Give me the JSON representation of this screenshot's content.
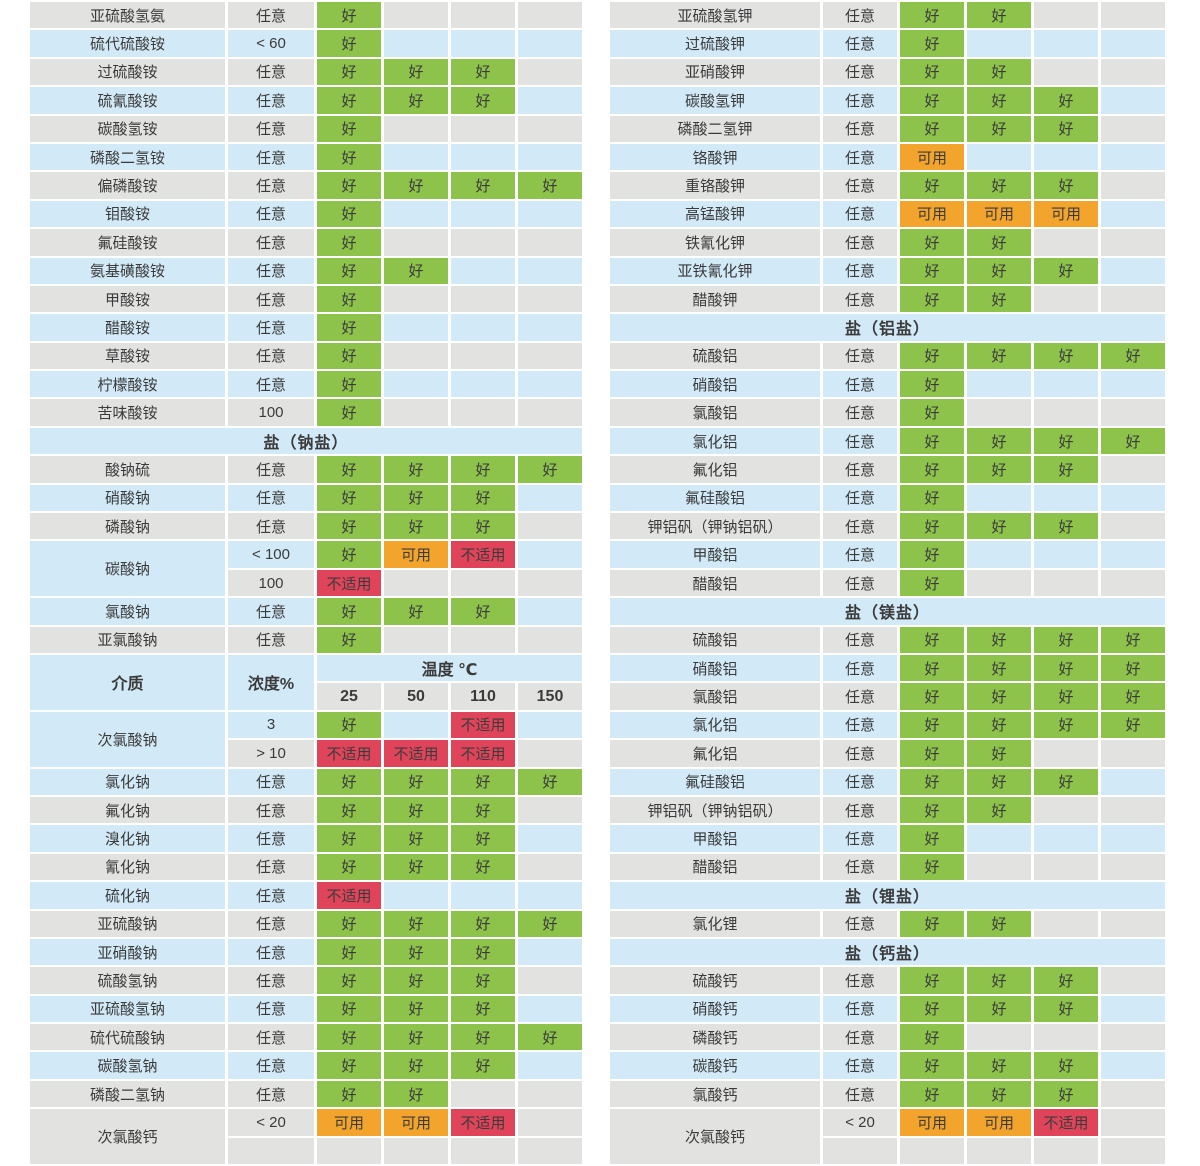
{
  "legend_labels": {
    "good": "好",
    "usable": "可用",
    "unsuitable": "不适用"
  },
  "colors": {
    "good": "#8dc24b",
    "usable": "#f3a42d",
    "unsuitable": "#e0445a",
    "row_gray": "#e2e2e1",
    "row_blue": "#d2e9f7",
    "text": "#3b3b3b"
  },
  "column_header": {
    "medium": "介质",
    "concentration": "浓度%",
    "temperature": "温度 ℃",
    "temps": [
      "25",
      "50",
      "110",
      "150"
    ]
  },
  "left_table": {
    "rows": [
      {
        "name": "亚硫酸氢氨",
        "conc": "任意",
        "stripe": "gray",
        "cells": [
          "good",
          "",
          "",
          ""
        ]
      },
      {
        "name": "硫代硫酸铵",
        "conc": "< 60",
        "stripe": "blue",
        "cells": [
          "good",
          "",
          "",
          ""
        ]
      },
      {
        "name": "过硫酸铵",
        "conc": "任意",
        "stripe": "gray",
        "cells": [
          "good",
          "good",
          "good",
          ""
        ]
      },
      {
        "name": "硫氰酸铵",
        "conc": "任意",
        "stripe": "blue",
        "cells": [
          "good",
          "good",
          "good",
          ""
        ]
      },
      {
        "name": "碳酸氢铵",
        "conc": "任意",
        "stripe": "gray",
        "cells": [
          "good",
          "",
          "",
          ""
        ]
      },
      {
        "name": "磷酸二氢铵",
        "conc": "任意",
        "stripe": "blue",
        "cells": [
          "good",
          "",
          "",
          ""
        ]
      },
      {
        "name": "偏磷酸铵",
        "conc": "任意",
        "stripe": "gray",
        "cells": [
          "good",
          "good",
          "good",
          "good"
        ]
      },
      {
        "name": "钼酸铵",
        "conc": "任意",
        "stripe": "blue",
        "cells": [
          "good",
          "",
          "",
          ""
        ]
      },
      {
        "name": "氟硅酸铵",
        "conc": "任意",
        "stripe": "gray",
        "cells": [
          "good",
          "",
          "",
          ""
        ]
      },
      {
        "name": "氨基磺酸铵",
        "conc": "任意",
        "stripe": "blue",
        "cells": [
          "good",
          "good",
          "",
          ""
        ]
      },
      {
        "name": "甲酸铵",
        "conc": "任意",
        "stripe": "gray",
        "cells": [
          "good",
          "",
          "",
          ""
        ]
      },
      {
        "name": "醋酸铵",
        "conc": "任意",
        "stripe": "blue",
        "cells": [
          "good",
          "",
          "",
          ""
        ]
      },
      {
        "name": "草酸铵",
        "conc": "任意",
        "stripe": "gray",
        "cells": [
          "good",
          "",
          "",
          ""
        ]
      },
      {
        "name": "柠檬酸铵",
        "conc": "任意",
        "stripe": "blue",
        "cells": [
          "good",
          "",
          "",
          ""
        ]
      },
      {
        "name": "苦味酸铵",
        "conc": "100",
        "stripe": "gray",
        "cells": [
          "good",
          "",
          "",
          ""
        ]
      },
      {
        "section": "盐（钠盐）"
      },
      {
        "name": "酸钠硫",
        "conc": "任意",
        "stripe": "gray",
        "cells": [
          "good",
          "good",
          "good",
          "good"
        ]
      },
      {
        "name": "硝酸钠",
        "conc": "任意",
        "stripe": "blue",
        "cells": [
          "good",
          "good",
          "good",
          ""
        ]
      },
      {
        "name": "磷酸钠",
        "conc": "任意",
        "stripe": "gray",
        "cells": [
          "good",
          "good",
          "good",
          ""
        ]
      },
      {
        "name": "碳酸钠",
        "span": 2,
        "conc": "< 100",
        "stripe": "blue",
        "cells": [
          "good",
          "usable",
          "unsuitable",
          ""
        ]
      },
      {
        "cont": true,
        "conc": "100",
        "stripe": "gray",
        "cells": [
          "unsuitable",
          "",
          "",
          ""
        ]
      },
      {
        "name": "氯酸钠",
        "conc": "任意",
        "stripe": "blue",
        "cells": [
          "good",
          "good",
          "good",
          ""
        ]
      },
      {
        "name": "亚氯酸钠",
        "conc": "任意",
        "stripe": "gray",
        "cells": [
          "good",
          "",
          "",
          ""
        ]
      },
      {
        "temp_header": true
      },
      {
        "name": "次氯酸钠",
        "span": 2,
        "conc": "3",
        "stripe": "blue",
        "cells": [
          "good",
          "",
          "unsuitable",
          ""
        ]
      },
      {
        "cont": true,
        "conc": "> 10",
        "stripe": "gray",
        "cells": [
          "unsuitable",
          "unsuitable",
          "unsuitable",
          ""
        ]
      },
      {
        "name": "氯化钠",
        "conc": "任意",
        "stripe": "blue",
        "cells": [
          "good",
          "good",
          "good",
          "good"
        ]
      },
      {
        "name": "氟化钠",
        "conc": "任意",
        "stripe": "gray",
        "cells": [
          "good",
          "good",
          "good",
          ""
        ]
      },
      {
        "name": "溴化钠",
        "conc": "任意",
        "stripe": "blue",
        "cells": [
          "good",
          "good",
          "good",
          ""
        ]
      },
      {
        "name": "氰化钠",
        "conc": "任意",
        "stripe": "gray",
        "cells": [
          "good",
          "good",
          "good",
          ""
        ]
      },
      {
        "name": "硫化钠",
        "conc": "任意",
        "stripe": "blue",
        "cells": [
          "unsuitable",
          "",
          "",
          ""
        ]
      },
      {
        "name": "亚硫酸钠",
        "conc": "任意",
        "stripe": "gray",
        "cells": [
          "good",
          "good",
          "good",
          "good"
        ]
      },
      {
        "name": "亚硝酸钠",
        "conc": "任意",
        "stripe": "blue",
        "cells": [
          "good",
          "good",
          "good",
          ""
        ]
      },
      {
        "name": "硫酸氢钠",
        "conc": "任意",
        "stripe": "gray",
        "cells": [
          "good",
          "good",
          "good",
          ""
        ]
      },
      {
        "name": "亚硫酸氢钠",
        "conc": "任意",
        "stripe": "blue",
        "cells": [
          "good",
          "good",
          "good",
          ""
        ]
      },
      {
        "name": "硫代硫酸钠",
        "conc": "任意",
        "stripe": "gray",
        "cells": [
          "good",
          "good",
          "good",
          "good"
        ]
      },
      {
        "name": "碳酸氢钠",
        "conc": "任意",
        "stripe": "blue",
        "cells": [
          "good",
          "good",
          "good",
          ""
        ]
      },
      {
        "name": "磷酸二氢钠",
        "conc": "任意",
        "stripe": "gray",
        "cells": [
          "good",
          "good",
          "",
          ""
        ]
      },
      {
        "name": "次氯酸钙",
        "span": 2,
        "cut": true,
        "conc": "< 20",
        "stripe": "gray",
        "cells": [
          "usable",
          "usable",
          "unsuitable",
          ""
        ]
      }
    ]
  },
  "right_table": {
    "rows": [
      {
        "name": "亚硫酸氢钾",
        "conc": "任意",
        "stripe": "gray",
        "cells": [
          "good",
          "good",
          "",
          ""
        ]
      },
      {
        "name": "过硫酸钾",
        "conc": "任意",
        "stripe": "blue",
        "cells": [
          "good",
          "",
          "",
          ""
        ]
      },
      {
        "name": "亚硝酸钾",
        "conc": "任意",
        "stripe": "gray",
        "cells": [
          "good",
          "good",
          "",
          ""
        ]
      },
      {
        "name": "碳酸氢钾",
        "conc": "任意",
        "stripe": "blue",
        "cells": [
          "good",
          "good",
          "good",
          ""
        ]
      },
      {
        "name": "磷酸二氢钾",
        "conc": "任意",
        "stripe": "gray",
        "cells": [
          "good",
          "good",
          "good",
          ""
        ]
      },
      {
        "name": "铬酸钾",
        "conc": "任意",
        "stripe": "blue",
        "cells": [
          "usable",
          "",
          "",
          ""
        ]
      },
      {
        "name": "重铬酸钾",
        "conc": "任意",
        "stripe": "gray",
        "cells": [
          "good",
          "good",
          "good",
          ""
        ]
      },
      {
        "name": "高锰酸钾",
        "conc": "任意",
        "stripe": "blue",
        "cells": [
          "usable",
          "usable",
          "usable",
          ""
        ]
      },
      {
        "name": "铁氰化钾",
        "conc": "任意",
        "stripe": "gray",
        "cells": [
          "good",
          "good",
          "",
          ""
        ]
      },
      {
        "name": "亚铁氰化钾",
        "conc": "任意",
        "stripe": "blue",
        "cells": [
          "good",
          "good",
          "good",
          ""
        ]
      },
      {
        "name": "醋酸钾",
        "conc": "任意",
        "stripe": "gray",
        "cells": [
          "good",
          "good",
          "",
          ""
        ]
      },
      {
        "section": "盐（铝盐）"
      },
      {
        "name": "硫酸铝",
        "conc": "任意",
        "stripe": "gray",
        "cells": [
          "good",
          "good",
          "good",
          "good"
        ]
      },
      {
        "name": "硝酸铝",
        "conc": "任意",
        "stripe": "blue",
        "cells": [
          "good",
          "",
          "",
          ""
        ]
      },
      {
        "name": "氯酸铝",
        "conc": "任意",
        "stripe": "gray",
        "cells": [
          "good",
          "",
          "",
          ""
        ]
      },
      {
        "name": "氯化铝",
        "conc": "任意",
        "stripe": "blue",
        "cells": [
          "good",
          "good",
          "good",
          "good"
        ]
      },
      {
        "name": "氟化铝",
        "conc": "任意",
        "stripe": "gray",
        "cells": [
          "good",
          "good",
          "good",
          ""
        ]
      },
      {
        "name": "氟硅酸铝",
        "conc": "任意",
        "stripe": "blue",
        "cells": [
          "good",
          "",
          "",
          ""
        ]
      },
      {
        "name": "钾铝矾（钾钠铝矾）",
        "conc": "任意",
        "stripe": "gray",
        "cells": [
          "good",
          "good",
          "good",
          ""
        ]
      },
      {
        "name": "甲酸铝",
        "conc": "任意",
        "stripe": "blue",
        "cells": [
          "good",
          "",
          "",
          ""
        ]
      },
      {
        "name": "醋酸铝",
        "conc": "任意",
        "stripe": "gray",
        "cells": [
          "good",
          "",
          "",
          ""
        ]
      },
      {
        "section": "盐（镁盐）"
      },
      {
        "name": "硫酸铝",
        "conc": "任意",
        "stripe": "gray",
        "cells": [
          "good",
          "good",
          "good",
          "good"
        ]
      },
      {
        "name": "硝酸铝",
        "conc": "任意",
        "stripe": "blue",
        "cells": [
          "good",
          "good",
          "good",
          "good"
        ]
      },
      {
        "name": "氯酸铝",
        "conc": "任意",
        "stripe": "gray",
        "cells": [
          "good",
          "good",
          "good",
          "good"
        ]
      },
      {
        "name": "氯化铝",
        "conc": "任意",
        "stripe": "blue",
        "cells": [
          "good",
          "good",
          "good",
          "good"
        ]
      },
      {
        "name": "氟化铝",
        "conc": "任意",
        "stripe": "gray",
        "cells": [
          "good",
          "good",
          "",
          ""
        ]
      },
      {
        "name": "氟硅酸铝",
        "conc": "任意",
        "stripe": "blue",
        "cells": [
          "good",
          "good",
          "good",
          ""
        ]
      },
      {
        "name": "钾铝矾（钾钠铝矾）",
        "conc": "任意",
        "stripe": "gray",
        "cells": [
          "good",
          "good",
          "",
          ""
        ]
      },
      {
        "name": "甲酸铝",
        "conc": "任意",
        "stripe": "blue",
        "cells": [
          "good",
          "",
          "",
          ""
        ]
      },
      {
        "name": "醋酸铝",
        "conc": "任意",
        "stripe": "gray",
        "cells": [
          "good",
          "",
          "",
          ""
        ]
      },
      {
        "section": "盐（锂盐）"
      },
      {
        "name": "氯化锂",
        "conc": "任意",
        "stripe": "gray",
        "cells": [
          "good",
          "good",
          "",
          ""
        ]
      },
      {
        "section": "盐（钙盐）"
      },
      {
        "name": "硫酸钙",
        "conc": "任意",
        "stripe": "gray",
        "cells": [
          "good",
          "good",
          "good",
          ""
        ]
      },
      {
        "name": "硝酸钙",
        "conc": "任意",
        "stripe": "blue",
        "cells": [
          "good",
          "good",
          "good",
          ""
        ]
      },
      {
        "name": "磷酸钙",
        "conc": "任意",
        "stripe": "gray",
        "cells": [
          "good",
          "",
          "",
          ""
        ]
      },
      {
        "name": "碳酸钙",
        "conc": "任意",
        "stripe": "blue",
        "cells": [
          "good",
          "good",
          "good",
          ""
        ]
      },
      {
        "name": "氯酸钙",
        "conc": "任意",
        "stripe": "gray",
        "cells": [
          "good",
          "good",
          "good",
          ""
        ]
      },
      {
        "name": "次氯酸钙",
        "span": 2,
        "cut": true,
        "conc": "< 20",
        "stripe": "gray",
        "cells": [
          "usable",
          "usable",
          "unsuitable",
          ""
        ]
      }
    ]
  }
}
